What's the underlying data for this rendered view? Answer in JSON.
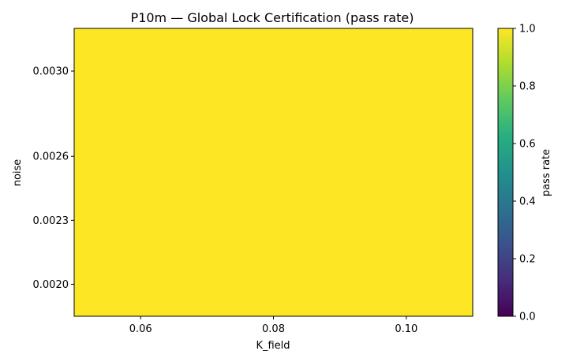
{
  "chart_data": {
    "type": "heatmap",
    "title": "P10m — Global Lock Certification (pass rate)",
    "xlabel": "K_field",
    "ylabel": "noise",
    "x_values": [
      0.06,
      0.08,
      0.1
    ],
    "y_values": [
      0.002,
      0.0023,
      0.0026,
      0.003
    ],
    "x_tick_labels": [
      "0.06",
      "0.08",
      "0.10"
    ],
    "y_tick_labels": [
      "0.0020",
      "0.0023",
      "0.0026",
      "0.0030"
    ],
    "values": [
      [
        1.0,
        1.0,
        1.0
      ],
      [
        1.0,
        1.0,
        1.0
      ],
      [
        1.0,
        1.0,
        1.0
      ],
      [
        1.0,
        1.0,
        1.0
      ]
    ],
    "colormap": "viridis",
    "colorbar": {
      "label": "pass rate",
      "range": [
        0.0,
        1.0
      ],
      "tick_values": [
        0.0,
        0.2,
        0.4,
        0.6,
        0.8,
        1.0
      ],
      "tick_labels": [
        "0.0",
        "0.2",
        "0.4",
        "0.6",
        "0.8",
        "1.0"
      ]
    },
    "grid": false
  }
}
